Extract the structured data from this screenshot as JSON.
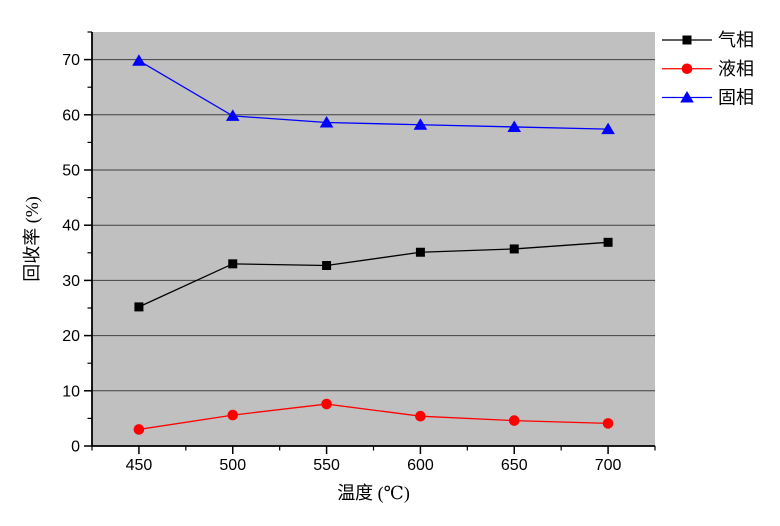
{
  "chart_data": {
    "type": "line",
    "title": "",
    "xlabel": "温度 (℃)",
    "ylabel": "回收率 (%)",
    "x": [
      450,
      500,
      550,
      600,
      650,
      700
    ],
    "series": [
      {
        "name": "气相",
        "color": "#000000",
        "marker": "square",
        "values": [
          25.2,
          33.0,
          32.7,
          35.1,
          35.7,
          36.9
        ]
      },
      {
        "name": "液相",
        "color": "#ff0000",
        "marker": "circle",
        "values": [
          3.0,
          5.6,
          7.6,
          5.4,
          4.6,
          4.1
        ]
      },
      {
        "name": "固相",
        "color": "#0000ff",
        "marker": "triangle",
        "values": [
          69.8,
          59.8,
          58.6,
          58.2,
          57.8,
          57.4
        ]
      }
    ],
    "xlim": [
      425,
      725
    ],
    "ylim": [
      0,
      75
    ],
    "x_major_ticks": [
      450,
      500,
      550,
      600,
      650,
      700
    ],
    "y_major_ticks": [
      0,
      10,
      20,
      30,
      40,
      50,
      60,
      70
    ],
    "x_minor_step": 25,
    "y_minor_step": 5,
    "grid": "horizontal-major",
    "legend": {
      "position": "top-right-outside",
      "entries": [
        "气相",
        "液相",
        "固相"
      ]
    },
    "colors": {
      "plot_background": "#c0c0c0",
      "grid_line": "#404040",
      "axis": "#000000",
      "outer_background": "#ffffff"
    }
  }
}
